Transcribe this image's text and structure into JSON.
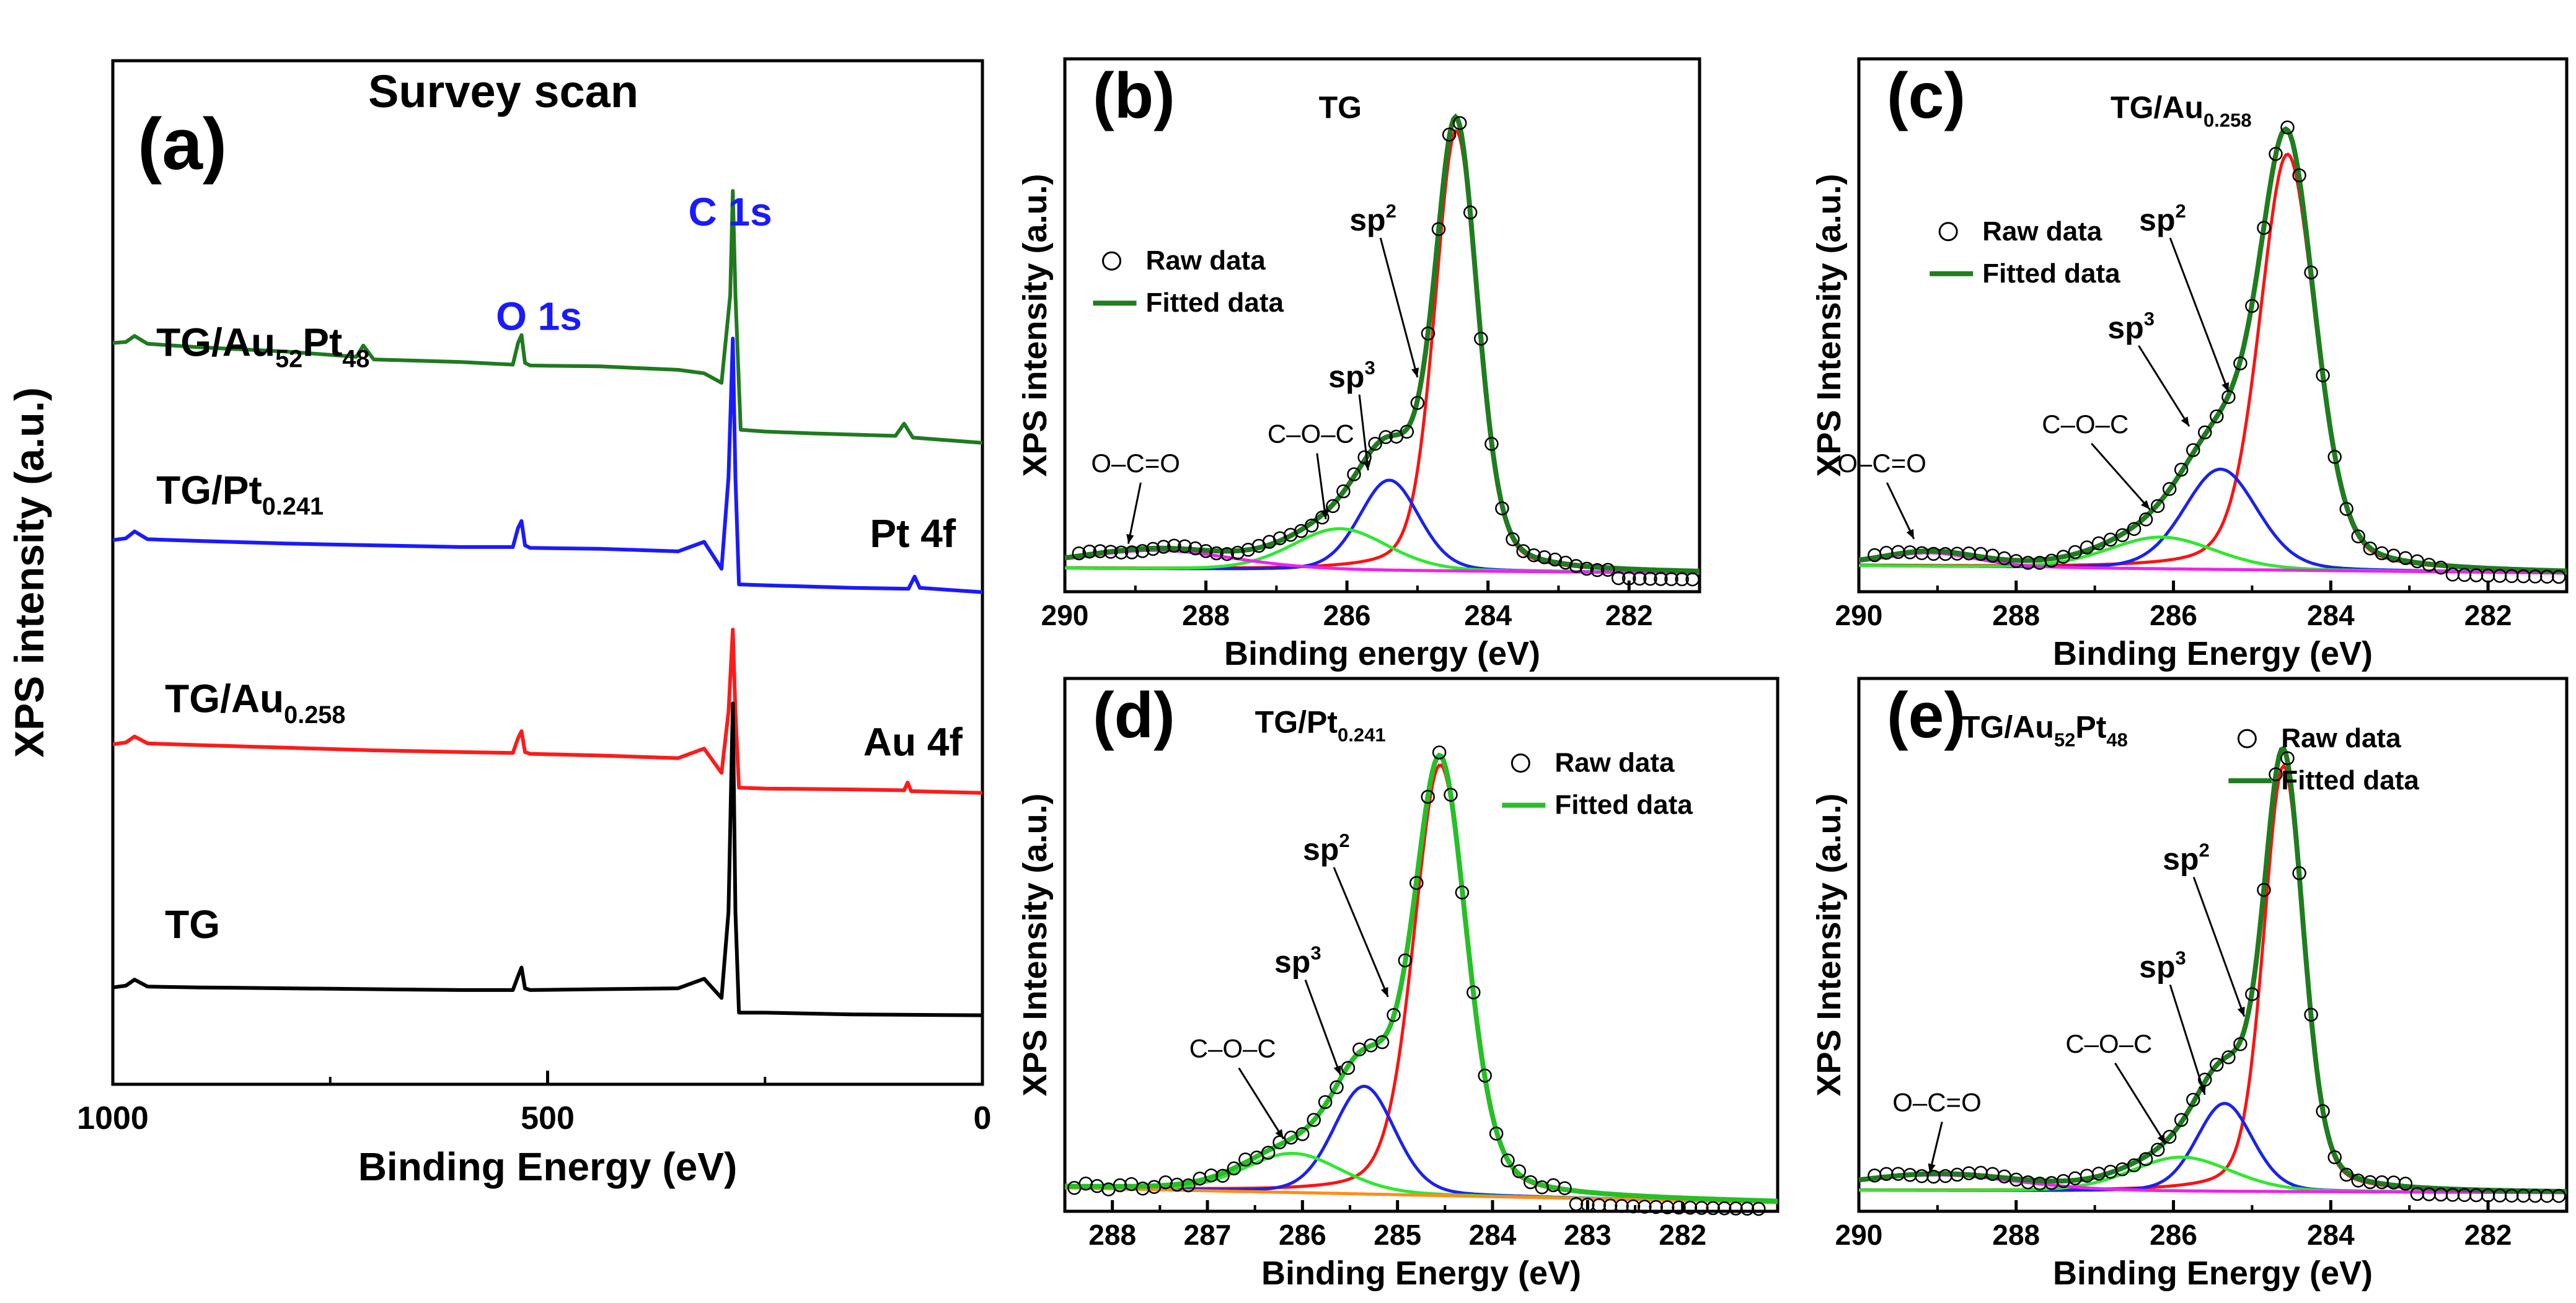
{
  "figure": {
    "colors": {
      "green": "#1f7a1f",
      "blue": "#1a1aff",
      "red": "#ff1a1a",
      "black": "#000000",
      "fit_green": "#1e7d1e",
      "sp3_blue": "#1a22ee",
      "coc_green": "#2ee82e",
      "occ_magenta": "#ee22ee",
      "bg_orange": "#ff8c1a",
      "sp2_red": "#ff1111"
    },
    "icons": {
      "raw_marker": "open-circle-icon",
      "fit_marker": "line-icon"
    }
  },
  "chart_data": [
    {
      "id": "a",
      "type": "line",
      "panel_label": "(a)",
      "title": "Survey scan",
      "xlabel": "Binding Energy (eV)",
      "ylabel": "XPS intensity (a.u.)",
      "xlim": [
        1000,
        0
      ],
      "ylim": [
        0,
        100
      ],
      "x_ticks": [
        "1000",
        "500",
        "0"
      ],
      "x_tick_values": [
        1000,
        500,
        0
      ],
      "peak_labels": [
        {
          "text": "C 1s",
          "color": "#1a1aff",
          "x": 290,
          "y": 91
        },
        {
          "text": "O 1s",
          "color": "#1a1aff",
          "x": 510,
          "y": 79
        },
        {
          "text": "Pt 4f",
          "color": "#000000",
          "x": 80,
          "y": 54
        },
        {
          "text": "Au 4f",
          "color": "#000000",
          "x": 80,
          "y": 30
        }
      ],
      "series": [
        {
          "name": "TG/Au52Pt48",
          "color": "#1f7a1f",
          "label_main": "TG/Au",
          "label_sub1": "52",
          "label_mid": "Pt",
          "label_sub2": "48",
          "label_x": 950,
          "label_y": 76,
          "x": [
            1000,
            985,
            975,
            960,
            900,
            800,
            720,
            712,
            700,
            600,
            540,
            534,
            530,
            526,
            520,
            440,
            350,
            320,
            300,
            290,
            287,
            284,
            278,
            250,
            200,
            100,
            90,
            80,
            0
          ],
          "y": [
            77.5,
            77.6,
            78.3,
            77.4,
            77.0,
            76.5,
            75.9,
            77.2,
            75.6,
            75.3,
            75.0,
            77.5,
            78.4,
            75.2,
            74.9,
            74.8,
            74.4,
            74.0,
            72.9,
            83.0,
            95.0,
            83.0,
            67.5,
            67.3,
            67.1,
            66.8,
            68.2,
            66.6,
            66.0
          ]
        },
        {
          "name": "TG/Pt0.241",
          "color": "#1a1aff",
          "label_main": "TG/Pt",
          "label_sub1": "0.241",
          "label_mid": "",
          "label_sub2": "",
          "label_x": 950,
          "label_y": 59,
          "x": [
            1000,
            985,
            975,
            960,
            900,
            800,
            700,
            600,
            540,
            534,
            530,
            526,
            520,
            440,
            350,
            320,
            300,
            292,
            287,
            284,
            280,
            250,
            150,
            85,
            78,
            72,
            0
          ],
          "y": [
            54.8,
            55.0,
            55.8,
            54.9,
            54.7,
            54.4,
            54.2,
            54.0,
            54.0,
            56.2,
            57.0,
            54.2,
            53.9,
            53.8,
            53.5,
            54.6,
            51.5,
            62.0,
            78.0,
            62.0,
            49.7,
            49.6,
            49.3,
            49.2,
            50.6,
            49.3,
            48.8
          ]
        },
        {
          "name": "TG/Au0.258",
          "color": "#ff1a1a",
          "label_main": "TG/Au",
          "label_sub1": "0.258",
          "label_mid": "",
          "label_sub2": "",
          "label_x": 940,
          "label_y": 35,
          "x": [
            1000,
            985,
            975,
            960,
            900,
            800,
            700,
            600,
            540,
            534,
            530,
            526,
            520,
            440,
            350,
            320,
            300,
            292,
            287,
            284,
            280,
            250,
            150,
            90,
            86,
            82,
            0
          ],
          "y": [
            31.3,
            31.5,
            32.2,
            31.4,
            31.2,
            30.9,
            30.6,
            30.4,
            30.3,
            32.0,
            32.8,
            30.4,
            30.2,
            30.0,
            29.7,
            30.8,
            28.0,
            35.0,
            44.5,
            35.0,
            26.3,
            26.2,
            26.1,
            26.0,
            26.9,
            25.9,
            25.7
          ]
        },
        {
          "name": "TG",
          "color": "#000000",
          "label_main": "TG",
          "label_sub1": "",
          "label_mid": "",
          "label_sub2": "",
          "label_x": 940,
          "label_y": 9,
          "x": [
            1000,
            985,
            975,
            960,
            900,
            800,
            700,
            600,
            540,
            534,
            530,
            526,
            520,
            440,
            350,
            320,
            300,
            292,
            287,
            284,
            280,
            250,
            150,
            0
          ],
          "y": [
            3.3,
            3.5,
            4.2,
            3.4,
            3.3,
            3.2,
            3.1,
            3.0,
            3.0,
            4.6,
            5.6,
            3.2,
            3.0,
            3.1,
            3.2,
            4.3,
            2.1,
            12.0,
            36.0,
            12.0,
            0.4,
            0.4,
            0.2,
            0.1
          ]
        }
      ]
    },
    {
      "id": "b",
      "type": "line",
      "panel_label": "(b)",
      "title": "TG",
      "xlabel": "Binding energy (eV)",
      "ylabel": "XPS intensity (a.u.)",
      "xlim": [
        290,
        281
      ],
      "ylim": [
        0,
        100
      ],
      "x_ticks": [
        "290",
        "288",
        "286",
        "284",
        "282"
      ],
      "x_tick_values": [
        290,
        288,
        286,
        284,
        282
      ],
      "legend": {
        "raw_label": "Raw data",
        "fit_label": "Fitted data",
        "fit_color": "#1e7d1e"
      },
      "components": [
        {
          "name": "sp2",
          "label_main": "sp",
          "label_sup": "2",
          "color": "#ff1111",
          "center": 284.45,
          "height": 90.0,
          "width": 0.36,
          "eta": 0.3
        },
        {
          "name": "sp3",
          "label_main": "sp",
          "label_sup": "3",
          "color": "#1a22ee",
          "center": 285.4,
          "height": 18.5,
          "width": 0.5,
          "eta": 0.2
        },
        {
          "name": "C-O-C",
          "label_main": "C–O–C",
          "label_sup": "",
          "color": "#2ee82e",
          "center": 286.1,
          "height": 8.5,
          "width": 0.8,
          "eta": 0.2
        },
        {
          "name": "O-C=O",
          "label_main": "O–C=O",
          "label_sup": "",
          "color": "#ee22ee",
          "center": 288.7,
          "height": 3.8,
          "width": 1.3,
          "eta": 0.2
        }
      ],
      "baseline": {
        "left": 1.0,
        "right": 0.0
      },
      "raw_points": {
        "start": 289.8,
        "end": 281.1,
        "step": 0.15
      },
      "raw_tail": {
        "x_from": 282.2,
        "y": -1.5
      },
      "annotations": [
        {
          "text": "sp",
          "sup": "2",
          "tx": 285.7,
          "ty": 70,
          "ax": 285.0,
          "ay": 40
        },
        {
          "text": "sp",
          "sup": "3",
          "tx": 286.0,
          "ty": 38,
          "ax": 285.7,
          "ay": 21
        },
        {
          "text": "C–O–C",
          "sup": "",
          "tx": 286.6,
          "ty": 26,
          "ax": 286.3,
          "ay": 11
        },
        {
          "text": "O–C=O",
          "sup": "",
          "tx": 289.1,
          "ty": 20,
          "ax": 289.1,
          "ay": 6
        }
      ],
      "title_pos": {
        "x": 286.4,
        "y": 93
      },
      "legend_pos": {
        "x": 289.6,
        "y": 62
      }
    },
    {
      "id": "c",
      "type": "line",
      "panel_label": "(c)",
      "title": "TG/Au0.258",
      "title_main": "TG/Au",
      "title_sub": "0.258",
      "xlabel": "Binding Energy (eV)",
      "ylabel": "XPS Intensity (a.u.)",
      "xlim": [
        290,
        281
      ],
      "ylim": [
        0,
        100
      ],
      "x_ticks": [
        "290",
        "288",
        "286",
        "284",
        "282"
      ],
      "x_tick_values": [
        290,
        288,
        286,
        284,
        282
      ],
      "legend": {
        "raw_label": "Raw data",
        "fit_label": "Fitted data",
        "fit_color": "#1e7d1e"
      },
      "components": [
        {
          "name": "sp2",
          "label_main": "sp",
          "label_sup": "2",
          "color": "#ff1111",
          "center": 284.55,
          "height": 85.0,
          "width": 0.42,
          "eta": 0.3
        },
        {
          "name": "sp3",
          "label_main": "sp",
          "label_sup": "3",
          "color": "#1a22ee",
          "center": 285.4,
          "height": 20.5,
          "width": 0.55,
          "eta": 0.2
        },
        {
          "name": "C-O-C",
          "label_main": "C–O–C",
          "label_sup": "",
          "color": "#2ee82e",
          "center": 286.15,
          "height": 6.5,
          "width": 0.8,
          "eta": 0.2
        },
        {
          "name": "O-C=O",
          "label_main": "O–C=O",
          "label_sup": "",
          "color": "#ee22ee",
          "center": 289.1,
          "height": 2.8,
          "width": 0.7,
          "eta": 0.2
        }
      ],
      "baseline": {
        "left": 1.5,
        "right": 0.0
      },
      "raw_points": {
        "start": 289.8,
        "end": 281.1,
        "step": 0.15
      },
      "raw_tail": {
        "x_from": 282.6,
        "y": -1.0
      },
      "annotations": [
        {
          "text": "sp",
          "sup": "2",
          "tx": 286.2,
          "ty": 70,
          "ax": 285.3,
          "ay": 37
        },
        {
          "text": "sp",
          "sup": "3",
          "tx": 286.6,
          "ty": 48,
          "ax": 285.8,
          "ay": 30
        },
        {
          "text": "C–O–C",
          "sup": "",
          "tx": 287.2,
          "ty": 28,
          "ax": 286.3,
          "ay": 13
        },
        {
          "text": "O–C=O",
          "sup": "",
          "tx": 289.8,
          "ty": 20,
          "ax": 289.3,
          "ay": 7
        }
      ],
      "title_pos": {
        "x": 286.8,
        "y": 93
      },
      "legend_pos": {
        "x": 289.1,
        "y": 68
      }
    },
    {
      "id": "d",
      "type": "line",
      "panel_label": "(d)",
      "title": "TG/Pt0.241",
      "title_main": "TG/Pt",
      "title_sub": "0.241",
      "xlabel": "Binding Energy (eV)",
      "ylabel": "XPS Intensity (a.u.)",
      "xlim": [
        288.5,
        281
      ],
      "ylim": [
        0,
        100
      ],
      "x_ticks": [
        "288",
        "287",
        "286",
        "285",
        "284",
        "283",
        "282"
      ],
      "x_tick_values": [
        288,
        287,
        286,
        285,
        284,
        283,
        282
      ],
      "legend": {
        "raw_label": "Raw data",
        "fit_label": "Fitted data",
        "fit_color": "#25c025"
      },
      "components": [
        {
          "name": "sp2",
          "label_main": "sp",
          "label_sup": "2",
          "color": "#ff1111",
          "center": 284.55,
          "height": 88.0,
          "width": 0.33,
          "eta": 0.3
        },
        {
          "name": "sp3",
          "label_main": "sp",
          "label_sup": "3",
          "color": "#1a22ee",
          "center": 285.35,
          "height": 22.0,
          "width": 0.38,
          "eta": 0.2
        },
        {
          "name": "C-O-C",
          "label_main": "C–O–C",
          "label_sup": "",
          "color": "#2ee82e",
          "center": 286.1,
          "height": 8.0,
          "width": 0.6,
          "eta": 0.2
        },
        {
          "name": "background",
          "label_main": "",
          "label_sup": "",
          "color": "#ff8c1a",
          "center": 290.0,
          "height": 0.0,
          "width": 1.0,
          "eta": 0.0
        }
      ],
      "baseline": {
        "left": 1.0,
        "right": -2.0
      },
      "raw_points": {
        "start": 288.4,
        "end": 281.1,
        "step": 0.12
      },
      "raw_tail": {
        "x_from": 283.2,
        "y": -2.5
      },
      "annotations": [
        {
          "text": "sp",
          "sup": "2",
          "tx": 285.8,
          "ty": 68,
          "ax": 285.1,
          "ay": 40
        },
        {
          "text": "sp",
          "sup": "3",
          "tx": 286.1,
          "ty": 45,
          "ax": 285.6,
          "ay": 24
        },
        {
          "text": "C–O–C",
          "sup": "",
          "tx": 286.8,
          "ty": 27,
          "ax": 286.2,
          "ay": 11
        }
      ],
      "title_pos": {
        "x": 286.5,
        "y": 94
      },
      "legend_pos": {
        "x": 283.9,
        "y": 86
      }
    },
    {
      "id": "e",
      "type": "line",
      "panel_label": "(e)",
      "title": "TG/Au52Pt48",
      "title_main": "TG/Au",
      "title_sub": "52",
      "title_mid": "Pt",
      "title_sub2": "48",
      "xlabel": "Binding Energy (eV)",
      "ylabel": "XPS Intensity (a.u.)",
      "xlim": [
        290,
        281
      ],
      "ylim": [
        0,
        100
      ],
      "x_ticks": [
        "290",
        "288",
        "286",
        "284",
        "282"
      ],
      "x_tick_values": [
        290,
        288,
        286,
        284,
        282
      ],
      "legend": {
        "raw_label": "Raw data",
        "fit_label": "Fitted data",
        "fit_color": "#1e7d1e"
      },
      "components": [
        {
          "name": "sp2",
          "label_main": "sp",
          "label_sup": "2",
          "color": "#ff1111",
          "center": 284.6,
          "height": 87.0,
          "width": 0.3,
          "eta": 0.3
        },
        {
          "name": "sp3",
          "label_main": "sp",
          "label_sup": "3",
          "color": "#1a22ee",
          "center": 285.35,
          "height": 18.0,
          "width": 0.42,
          "eta": 0.2
        },
        {
          "name": "C-O-C",
          "label_main": "C–O–C",
          "label_sup": "",
          "color": "#2ee82e",
          "center": 285.9,
          "height": 7.0,
          "width": 0.75,
          "eta": 0.2
        },
        {
          "name": "O-C=O",
          "label_main": "O–C=O",
          "label_sup": "",
          "color": "#ee22ee",
          "center": 289.0,
          "height": 3.2,
          "width": 1.2,
          "eta": 0.2
        }
      ],
      "baseline": {
        "left": 0.5,
        "right": 0.0
      },
      "raw_points": {
        "start": 289.8,
        "end": 281.1,
        "step": 0.15
      },
      "raw_tail": {
        "x_from": 283.0,
        "y": -0.8
      },
      "annotations": [
        {
          "text": "sp",
          "sup": "2",
          "tx": 285.9,
          "ty": 66,
          "ax": 285.1,
          "ay": 36
        },
        {
          "text": "sp",
          "sup": "3",
          "tx": 286.2,
          "ty": 44,
          "ax": 285.6,
          "ay": 20
        },
        {
          "text": "C–O–C",
          "sup": "",
          "tx": 286.9,
          "ty": 28,
          "ax": 286.1,
          "ay": 10
        },
        {
          "text": "O–C=O",
          "sup": "",
          "tx": 289.1,
          "ty": 16,
          "ax": 289.1,
          "ay": 4
        }
      ],
      "title_pos": {
        "x": 288.7,
        "y": 93
      },
      "legend_pos": {
        "x": 285.3,
        "y": 91
      }
    }
  ]
}
